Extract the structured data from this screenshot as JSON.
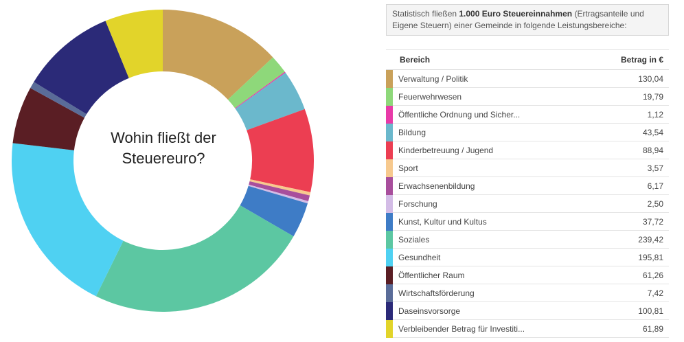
{
  "intro": {
    "pre": "Statistisch fließen ",
    "bold": "1.000 Euro Steuereinnahmen",
    "post": " (Ertragsanteile und Eigene Steuern) einer Gemeinde in folgende Leistungsbereiche:"
  },
  "table": {
    "header_bereich": "Bereich",
    "header_betrag": "Betrag in €"
  },
  "chart_data": {
    "type": "pie",
    "title": "Wohin fließt der Steuereuro?",
    "categories": [
      "Verwaltung / Politik",
      "Feuerwehrwesen",
      "Öffentliche Ordnung und Sicher...",
      "Bildung",
      "Kinderbetreuung / Jugend",
      "Sport",
      "Erwachsenenbildung",
      "Forschung",
      "Kunst, Kultur und Kultus",
      "Soziales",
      "Gesundheit",
      "Öffentlicher Raum",
      "Wirtschaftsförderung",
      "Daseinsvorsorge",
      "Verbleibender Betrag für Investiti..."
    ],
    "values": [
      130.04,
      19.79,
      1.12,
      43.54,
      88.94,
      3.57,
      6.17,
      2.5,
      37.72,
      239.42,
      195.81,
      61.26,
      7.42,
      100.81,
      61.89
    ],
    "value_labels": [
      "130,04",
      "19,79",
      "1,12",
      "43,54",
      "88,94",
      "3,57",
      "6,17",
      "2,50",
      "37,72",
      "239,42",
      "195,81",
      "61,26",
      "7,42",
      "100,81",
      "61,89"
    ],
    "colors": [
      "#c9a15a",
      "#8ed87a",
      "#e83aa8",
      "#6bb8cc",
      "#ec3e52",
      "#f7c98e",
      "#a84e9c",
      "#d3bce6",
      "#3e7cc6",
      "#5cc7a2",
      "#4fd1f2",
      "#5a1e24",
      "#5a6c98",
      "#2b2a78",
      "#e2d42a"
    ],
    "legend": "right",
    "donut": true
  }
}
